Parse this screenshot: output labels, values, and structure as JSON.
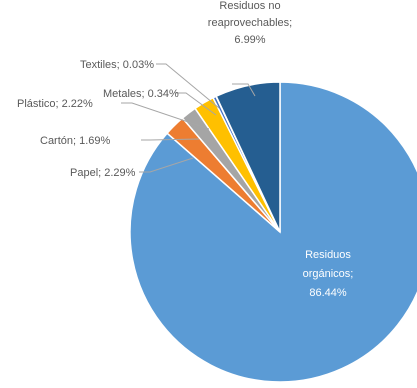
{
  "chart_data": {
    "type": "pie",
    "start_angle_deg": 0,
    "direction": "clockwise",
    "slices": [
      {
        "label": "Residuos orgánicos",
        "value": 86.44,
        "display": "86.44%",
        "color": "#5b9bd5",
        "label_lines": [
          "Residuos",
          "orgánicos;",
          "86.44%"
        ]
      },
      {
        "label": "Papel",
        "value": 2.29,
        "display": "2.29%",
        "color": "#ed7d31",
        "label_lines": [
          "Papel; 2.29%"
        ]
      },
      {
        "label": "Cartón",
        "value": 1.69,
        "display": "1.69%",
        "color": "#a5a5a5",
        "label_lines": [
          "Cartón; 1.69%"
        ]
      },
      {
        "label": "Plástico",
        "value": 2.22,
        "display": "2.22%",
        "color": "#ffc000",
        "label_lines": [
          "Plástico; 2.22%"
        ]
      },
      {
        "label": "Metales",
        "value": 0.34,
        "display": "0.34%",
        "color": "#4472c4",
        "label_lines": [
          "Metales; 0.34%"
        ]
      },
      {
        "label": "Textiles",
        "value": 0.03,
        "display": "0.03%",
        "color": "#70ad47",
        "label_lines": [
          "Textiles; 0.03%"
        ]
      },
      {
        "label": "Residuos no reaprovechables",
        "value": 6.99,
        "display": "6.99%",
        "color": "#255e91",
        "label_lines": [
          "Residuos no",
          "reaprovechables;",
          "6.99%"
        ]
      }
    ]
  }
}
